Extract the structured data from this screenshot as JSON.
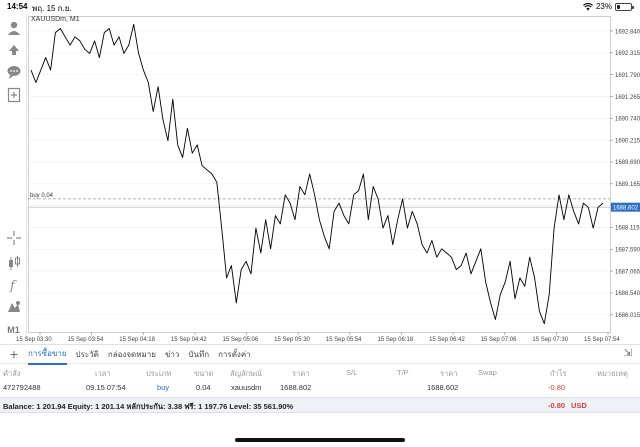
{
  "status": {
    "time": "14:54",
    "date": "พฤ. 15 ก.ย.",
    "battery": "23%",
    "battery_level": 0.23
  },
  "chart": {
    "symbol_label": "XAUUSDm, M1",
    "order_line_label": "buy 0.04",
    "current_price": "1688.602",
    "colors": {
      "price_box": "#2f6fc6",
      "line": "#000000",
      "grid": "#ececec",
      "order_line": "#9a9a9a"
    }
  },
  "chart_data": {
    "type": "line",
    "ylim": [
      1685.6,
      1693.2
    ],
    "y_ticks": [
      "1692.840",
      "1692.315",
      "1691.790",
      "1691.265",
      "1690.740",
      "1690.215",
      "1689.690",
      "1689.165",
      "1688.640",
      "1688.115",
      "1687.590",
      "1687.065",
      "1686.540",
      "1686.015"
    ],
    "x_ticks": [
      "15 Sep 03:30",
      "15 Sep 03:54",
      "15 Sep 04:18",
      "15 Sep 04:42",
      "15 Sep 05:06",
      "15 Sep 05:30",
      "15 Sep 05:54",
      "15 Sep 06:18",
      "15 Sep 06:42",
      "15 Sep 07:06",
      "15 Sep 07:30",
      "15 Sep 07:54"
    ],
    "series": [
      {
        "values": [
          1691.9,
          1691.6,
          1691.9,
          1692.2,
          1691.9,
          1692.8,
          1692.9,
          1692.7,
          1692.5,
          1692.7,
          1692.6,
          1692.4,
          1692.3,
          1692.6,
          1692.2,
          1692.8,
          1692.9,
          1692.5,
          1692.7,
          1692.3,
          1692.5,
          1693.0,
          1692.3,
          1691.9,
          1691.6,
          1690.9,
          1691.5,
          1690.7,
          1690.2,
          1691.2,
          1690.1,
          1689.8,
          1690.5,
          1689.9,
          1690.1,
          1689.6,
          1689.5,
          1689.4,
          1689.2,
          1688.1,
          1686.9,
          1687.2,
          1686.3,
          1687.1,
          1687.3,
          1687.0,
          1688.1,
          1687.5,
          1688.3,
          1687.6,
          1688.4,
          1688.2,
          1688.9,
          1688.7,
          1688.3,
          1689.1,
          1688.9,
          1689.4,
          1688.9,
          1688.3,
          1687.9,
          1687.6,
          1688.5,
          1688.7,
          1688.4,
          1688.2,
          1688.9,
          1689.0,
          1689.4,
          1688.3,
          1689.1,
          1688.8,
          1688.1,
          1688.4,
          1687.7,
          1688.3,
          1688.8,
          1688.1,
          1688.5,
          1688.2,
          1687.7,
          1687.5,
          1687.8,
          1687.4,
          1687.6,
          1687.5,
          1687.4,
          1687.1,
          1687.2,
          1687.5,
          1687.0,
          1687.3,
          1687.6,
          1686.8,
          1686.3,
          1685.9,
          1686.5,
          1686.8,
          1687.3,
          1686.4,
          1686.9,
          1686.7,
          1687.4,
          1686.9,
          1686.1,
          1685.8,
          1686.5,
          1688.1,
          1688.9,
          1688.3,
          1688.9,
          1688.5,
          1688.2,
          1688.7,
          1688.6,
          1688.1,
          1688.6,
          1688.7
        ]
      }
    ],
    "last_price": 1688.602,
    "order_price": 1688.802
  },
  "toolbox": {
    "tabs": [
      "การซื้อขาย",
      "ประวัติ",
      "กล่องจดหมาย",
      "ข่าว",
      "บันทึก",
      "การตั้งค่า"
    ],
    "columns": {
      "order": "คำสั่ง",
      "time": "เวลา",
      "type": "ประเภท",
      "volume": "ขนาด",
      "symbol": "สัญลักษณ์",
      "price": "ราคา",
      "sl": "S/L",
      "tp": "T/P",
      "price2": "ราคา",
      "swap": "Swap",
      "profit": "กำไร",
      "comment": "หมายเหตุ"
    },
    "position": {
      "order": "472792488",
      "time": "09.15 07:54",
      "type": "buy",
      "volume": "0.04",
      "symbol": "xauusdm",
      "open_price": "1688.802",
      "current_price": "1688.602",
      "profit": "-0.80"
    },
    "balance_line": "Balance: 1 201.94  Equity: 1 201.14  หลักประกัน: 3.38  ฟรี: 1 197.76  Level: 35 561.90%",
    "total_profit": "-0.80",
    "currency": "USD"
  }
}
